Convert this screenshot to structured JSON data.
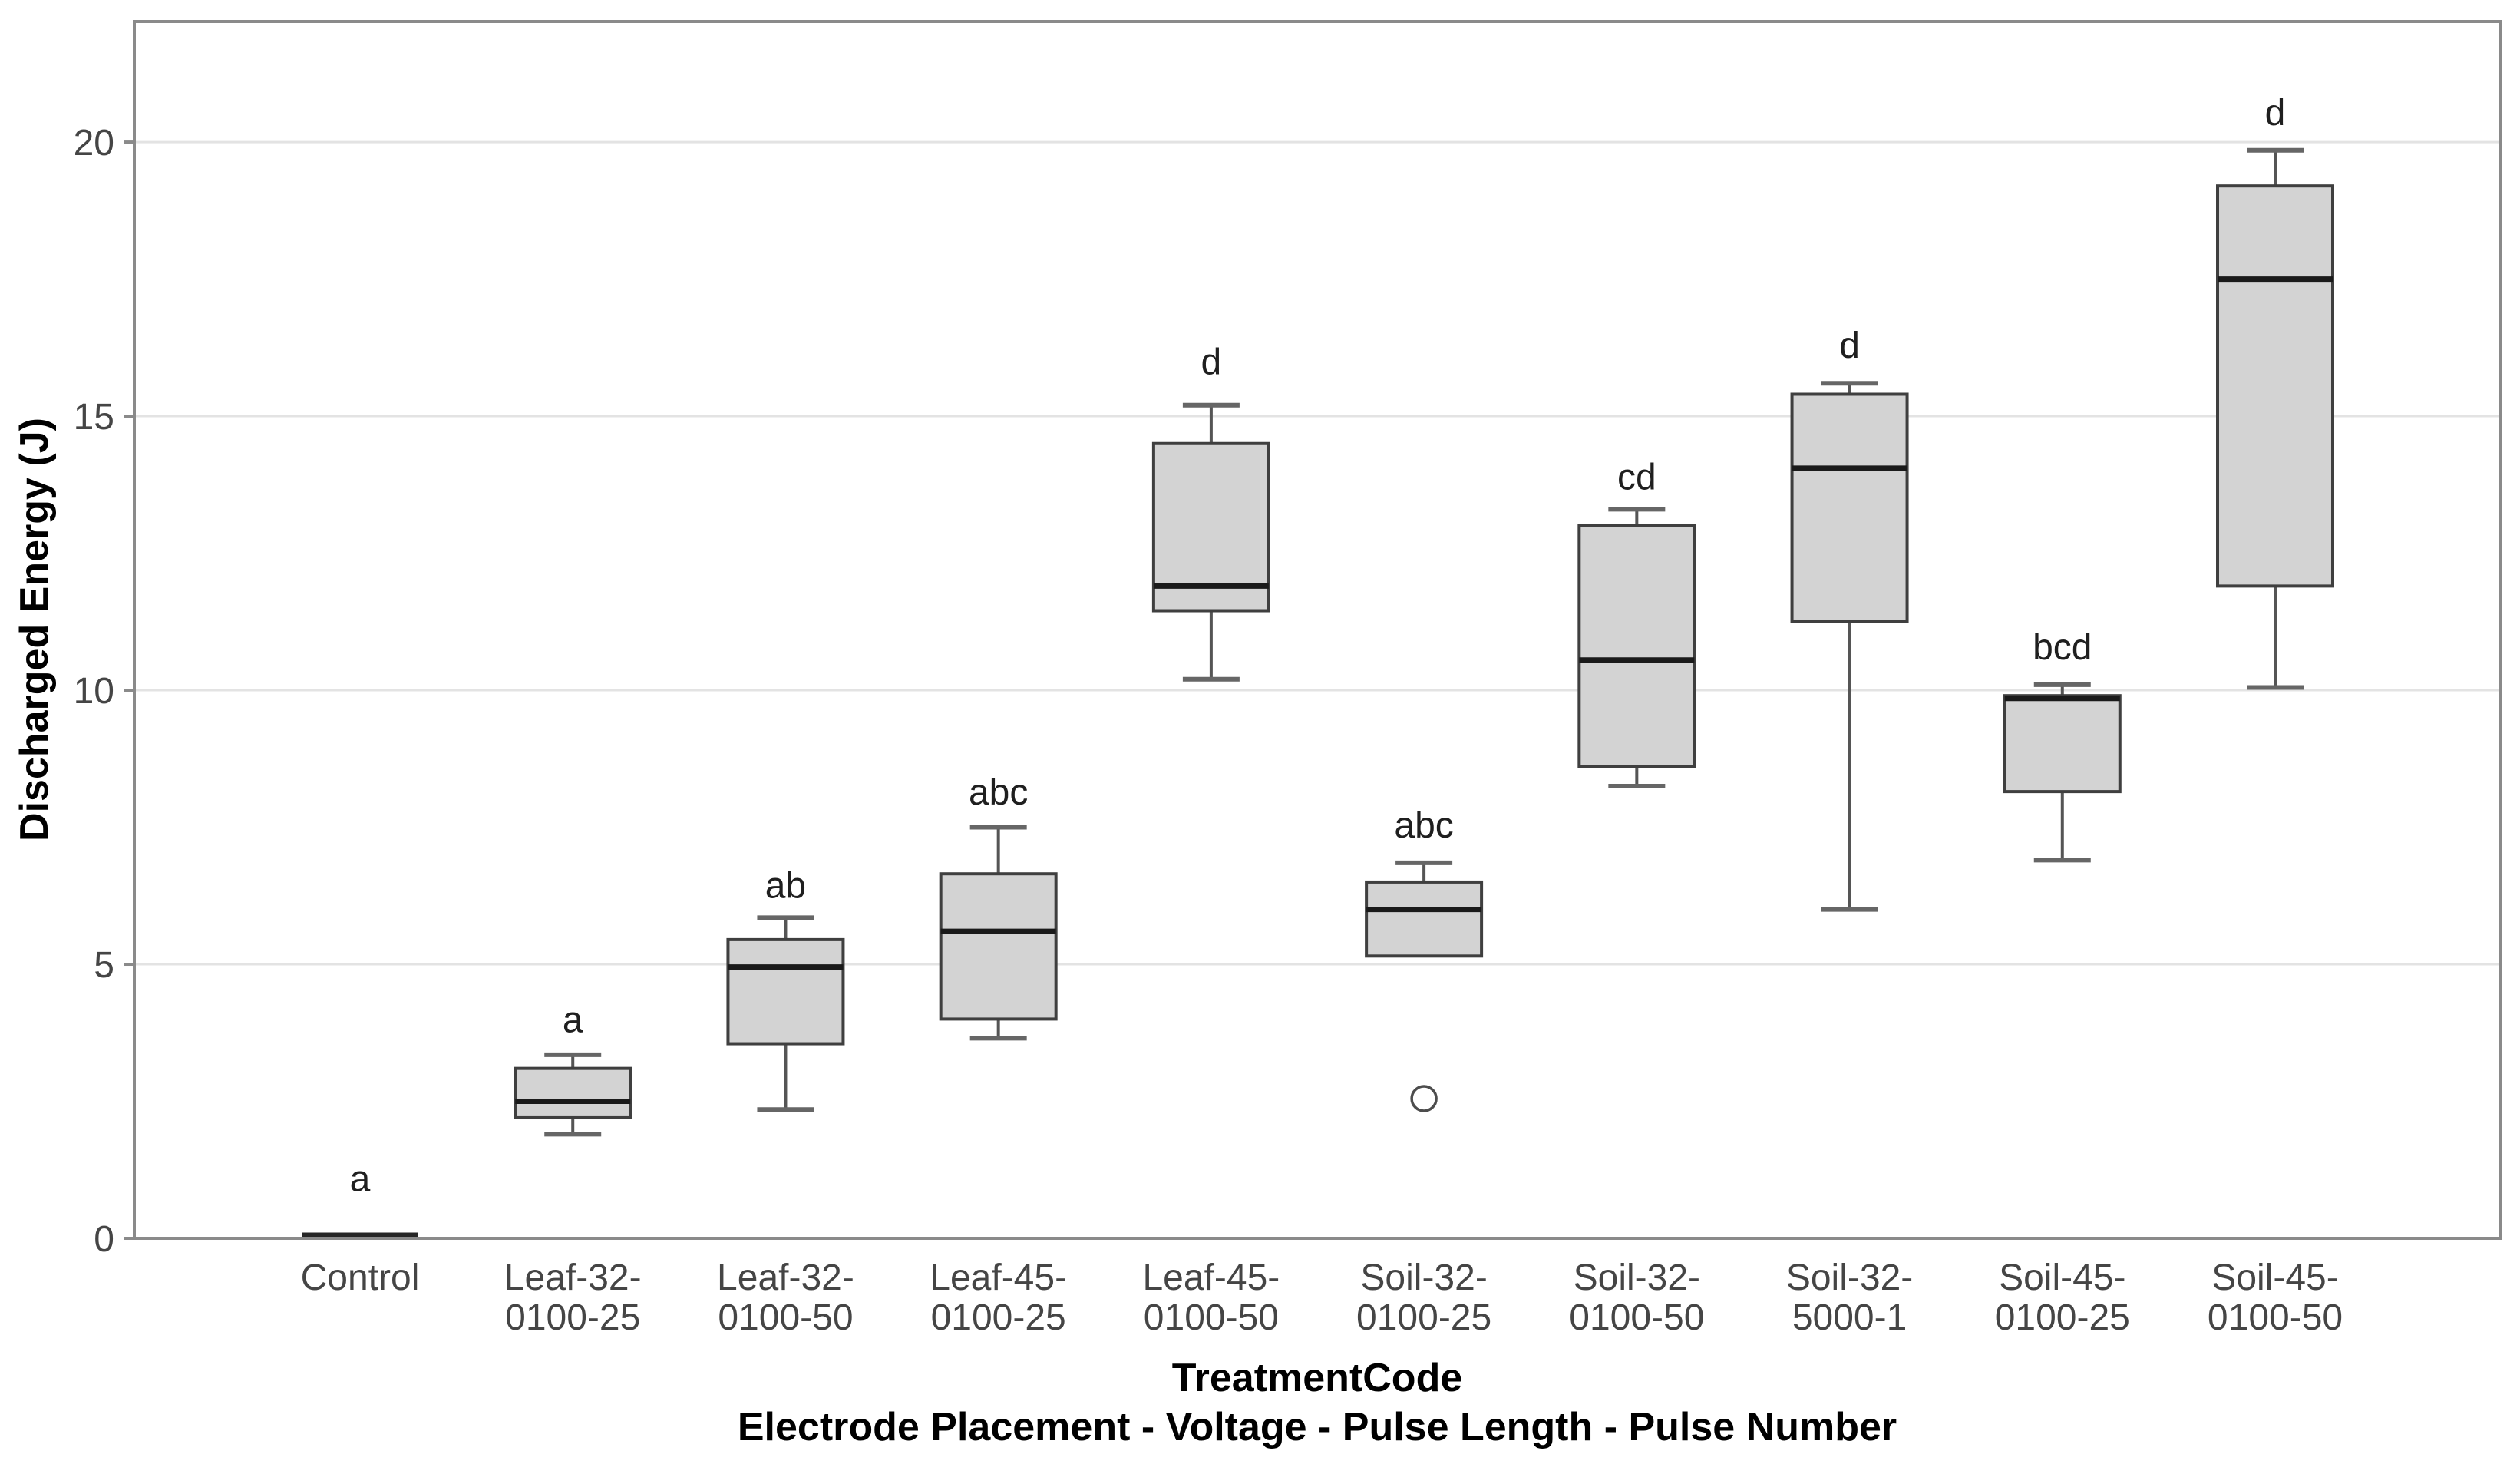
{
  "chart_data": {
    "type": "boxplot",
    "title": "",
    "ylabel": "Discharged Energy (J)",
    "xlabel_line1": "TreatmentCode",
    "xlabel_line2": "Electrode Placement - Voltage - Pulse Length - Pulse Number",
    "ylim": [
      0,
      22.2
    ],
    "yticks": [
      0,
      5,
      10,
      15,
      20
    ],
    "grid": true,
    "legend": "none",
    "categories": [
      "Control",
      "Leaf-32-0100-25",
      "Leaf-32-0100-50",
      "Leaf-45-0100-25",
      "Leaf-45-0100-50",
      "Soil-32-0100-25",
      "Soil-32-0100-50",
      "Soil-32-5000-1",
      "Soil-45-0100-25",
      "Soil-45-0100-50"
    ],
    "boxes": [
      {
        "code": "Control",
        "tick_lines": [
          "Control"
        ],
        "min": 0,
        "q1": 0,
        "median": 0,
        "q3": 0,
        "max": 0,
        "flat": true,
        "outliers": [],
        "letter": "a",
        "letter_value": 1.1
      },
      {
        "code": "Leaf-32-0100-25",
        "tick_lines": [
          "Leaf-32-",
          "0100-25"
        ],
        "min": 1.9,
        "q1": 2.2,
        "median": 2.5,
        "q3": 3.1,
        "max": 3.35,
        "flat": false,
        "outliers": [],
        "letter": "a",
        "letter_value": 4.0
      },
      {
        "code": "Leaf-32-0100-50",
        "tick_lines": [
          "Leaf-32-",
          "0100-50"
        ],
        "min": 2.35,
        "q1": 3.55,
        "median": 4.95,
        "q3": 5.45,
        "max": 5.85,
        "flat": false,
        "outliers": [],
        "letter": "ab",
        "letter_value": 6.45
      },
      {
        "code": "Leaf-45-0100-25",
        "tick_lines": [
          "Leaf-45-",
          "0100-25"
        ],
        "min": 3.65,
        "q1": 4.0,
        "median": 5.6,
        "q3": 6.65,
        "max": 7.5,
        "flat": false,
        "outliers": [],
        "letter": "abc",
        "letter_value": 8.15
      },
      {
        "code": "Leaf-45-0100-50",
        "tick_lines": [
          "Leaf-45-",
          "0100-50"
        ],
        "min": 10.2,
        "q1": 11.45,
        "median": 11.9,
        "q3": 14.5,
        "max": 15.2,
        "flat": false,
        "outliers": [],
        "letter": "d",
        "letter_value": 16.0
      },
      {
        "code": "Soil-32-0100-25",
        "tick_lines": [
          "Soil-32-",
          "0100-25"
        ],
        "min": 5.15,
        "q1": 5.15,
        "median": 6.0,
        "q3": 6.5,
        "max": 6.85,
        "flat": false,
        "outliers": [
          2.55
        ],
        "letter": "abc",
        "letter_value": 7.55
      },
      {
        "code": "Soil-32-0100-50",
        "tick_lines": [
          "Soil-32-",
          "0100-50"
        ],
        "min": 8.25,
        "q1": 8.6,
        "median": 10.55,
        "q3": 13.0,
        "max": 13.3,
        "flat": false,
        "outliers": [],
        "letter": "cd",
        "letter_value": 13.9
      },
      {
        "code": "Soil-32-5000-1",
        "tick_lines": [
          "Soil-32-",
          "5000-1"
        ],
        "min": 6.0,
        "q1": 11.25,
        "median": 14.05,
        "q3": 15.4,
        "max": 15.6,
        "flat": false,
        "outliers": [],
        "letter": "d",
        "letter_value": 16.3
      },
      {
        "code": "Soil-45-0100-25",
        "tick_lines": [
          "Soil-45-",
          "0100-25"
        ],
        "min": 6.9,
        "q1": 8.15,
        "median": 9.85,
        "q3": 9.9,
        "max": 10.1,
        "flat": false,
        "outliers": [],
        "letter": "bcd",
        "letter_value": 10.8
      },
      {
        "code": "Soil-45-0100-50",
        "tick_lines": [
          "Soil-45-",
          "0100-50"
        ],
        "min": 10.05,
        "q1": 11.9,
        "median": 17.5,
        "q3": 19.2,
        "max": 19.85,
        "flat": false,
        "outliers": [],
        "letter": "d",
        "letter_value": 20.55
      }
    ]
  },
  "colors": {
    "background": "#ffffff",
    "box_fill": "#d3d3d3",
    "box_border": "#3f3f3f",
    "median": "#1a1a1a",
    "whisker": "#555555",
    "cap": "#666666",
    "control_line": "#262626",
    "outlier_stroke": "#4d4d4d",
    "grid": "#e3e3e3",
    "frame": "#8a8a8a",
    "tick_label": "#454545",
    "letter": "#1f1f1f"
  }
}
